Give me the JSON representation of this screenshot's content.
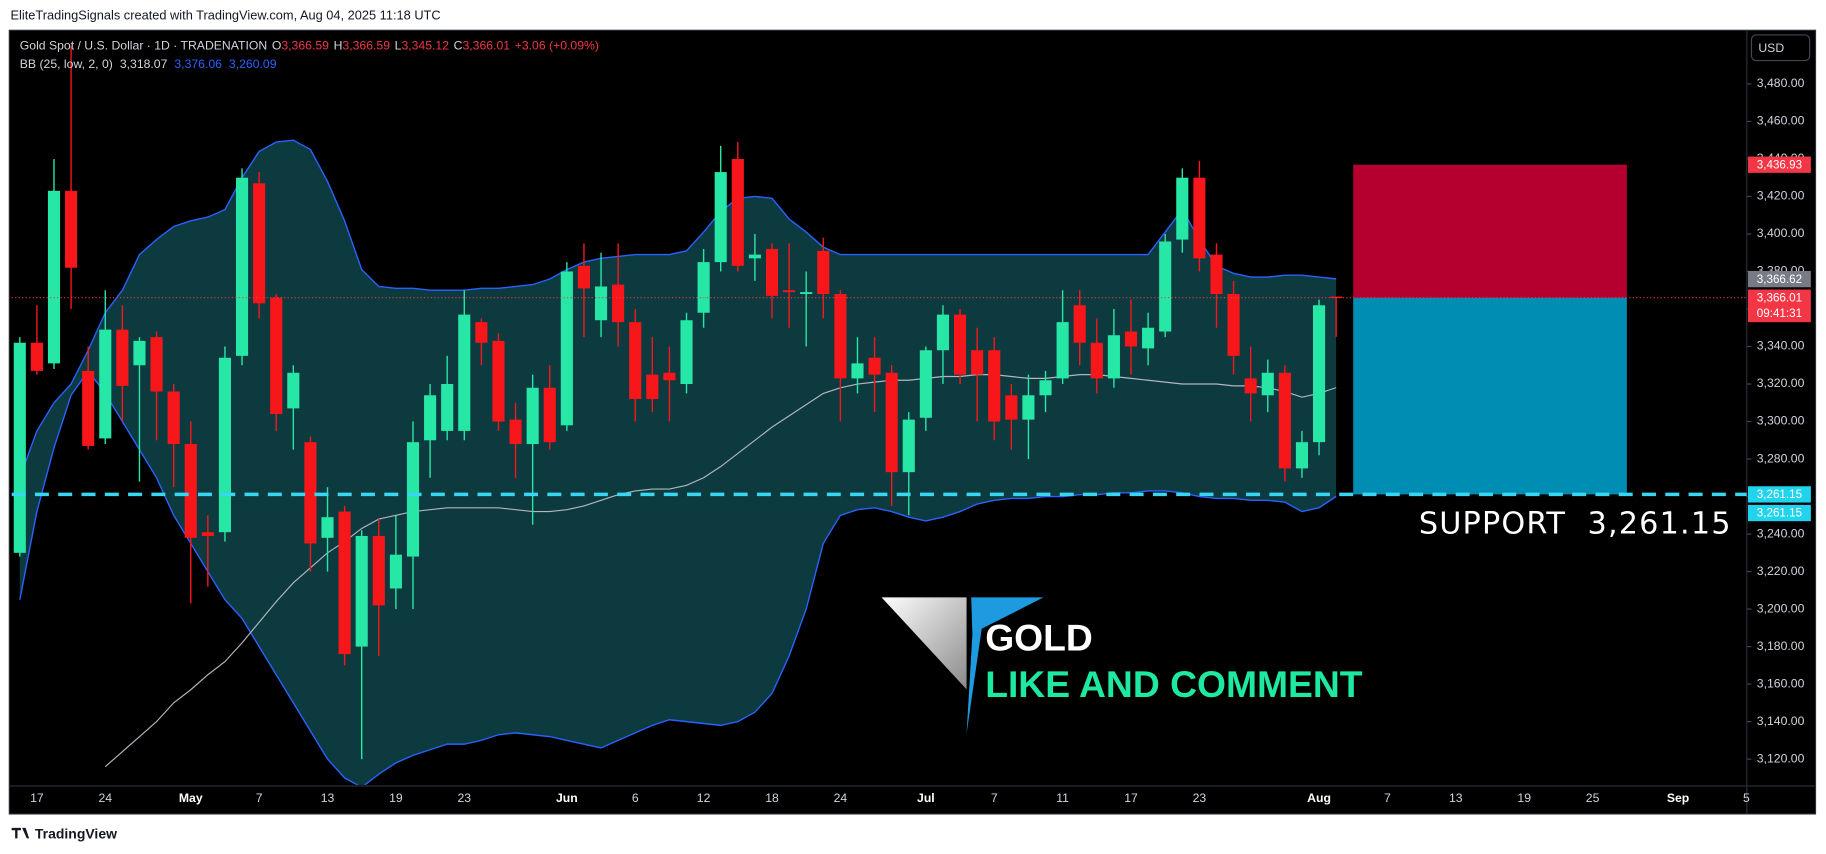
{
  "attribution": "EliteTradingSignals created with TradingView.com, Aug 04, 2025 11:18 UTC",
  "footer": "TradingView",
  "currency": "USD",
  "header": {
    "symbol": "Gold Spot / U.S. Dollar · 1D · TRADENATION",
    "ohlc": [
      {
        "label": "O",
        "value": "3,366.59"
      },
      {
        "label": "H",
        "value": "3,366.59"
      },
      {
        "label": "L",
        "value": "3,345.12"
      },
      {
        "label": "C",
        "value": "3,366.01"
      }
    ],
    "change": "+3.06 (+0.09%)",
    "indicator": "BB (25, low, 2, 0)",
    "indicator_values": [
      "3,318.07",
      "3,376.06",
      "3,260.09"
    ]
  },
  "overlay": {
    "title": "GOLD",
    "subtitle": "LIKE AND COMMENT"
  },
  "annotations": {
    "support": "SUPPORT  3,261.15"
  },
  "chart_data": {
    "type": "candlestick",
    "up_color": "#26e7a6",
    "down_color": "#f7171b",
    "band_color": "#2962ff",
    "basis_color": "#b2b5be",
    "band_fill": "#0c3a3f",
    "ylim": [
      3106.3,
      3508.6
    ],
    "yticks": [
      {
        "value": 3480,
        "label": "3,480.00"
      },
      {
        "value": 3460,
        "label": "3,460.00"
      },
      {
        "value": 3440,
        "label": "3,440.00"
      },
      {
        "value": 3420,
        "label": "3,420.00"
      },
      {
        "value": 3400,
        "label": "3,400.00"
      },
      {
        "value": 3380,
        "label": "3,380.00"
      },
      {
        "value": 3360,
        "label": "3,360.00"
      },
      {
        "value": 3340,
        "label": "3,340.00"
      },
      {
        "value": 3320,
        "label": "3,320.00"
      },
      {
        "value": 3300,
        "label": "3,300.00"
      },
      {
        "value": 3280,
        "label": "3,280.00"
      },
      {
        "value": 3260,
        "label": "3,260.00"
      },
      {
        "value": 3240,
        "label": "3,240.00"
      },
      {
        "value": 3220,
        "label": "3,220.00"
      },
      {
        "value": 3200,
        "label": "3,200.00"
      },
      {
        "value": 3180,
        "label": "3,180.00"
      },
      {
        "value": 3160,
        "label": "3,160.00"
      },
      {
        "value": 3140,
        "label": "3,140.00"
      },
      {
        "value": 3120,
        "label": "3,120.00"
      }
    ],
    "grid": false,
    "categories": [
      null,
      "17",
      null,
      null,
      null,
      "24",
      null,
      null,
      null,
      null,
      "May",
      null,
      null,
      null,
      "7",
      null,
      null,
      null,
      "13",
      null,
      null,
      null,
      "19",
      null,
      null,
      null,
      "23",
      null,
      null,
      null,
      null,
      null,
      "Jun",
      null,
      null,
      null,
      "6",
      null,
      null,
      null,
      "12",
      null,
      null,
      null,
      "18",
      null,
      null,
      null,
      "24",
      null,
      null,
      null,
      null,
      "Jul",
      null,
      null,
      null,
      "7",
      null,
      null,
      null,
      "11",
      null,
      null,
      null,
      "17",
      null,
      null,
      null,
      "23",
      null,
      null,
      null,
      null,
      null,
      null,
      "Aug",
      null,
      null,
      null,
      "7",
      null,
      null,
      null,
      "13",
      null,
      null,
      null,
      "19",
      null,
      null,
      null,
      "25",
      null,
      null,
      null,
      null,
      "Sep",
      null,
      null,
      null,
      "5"
    ],
    "open": [
      3230,
      3342,
      3331,
      3423,
      3327,
      3291,
      3349,
      3330,
      3345,
      3316,
      3288,
      3241,
      3241,
      3335,
      3427,
      3366,
      3307,
      3289,
      3238,
      3252,
      3180,
      3239,
      3211,
      3228,
      3290,
      3295,
      3295,
      3353,
      3343,
      3301,
      3288,
      3318,
      3298,
      3383,
      3354,
      3373,
      3353,
      3325,
      3326,
      3320,
      3358,
      3385,
      3440,
      3387,
      3392,
      3370,
      3368,
      3391,
      3368,
      3323,
      3334,
      3326,
      3273,
      3302,
      3338,
      3357,
      3338,
      3338,
      3314,
      3301,
      3314,
      3323,
      3362,
      3342,
      3323,
      3348,
      3339,
      3348,
      3397,
      3430,
      3389,
      3368,
      3323,
      3314,
      3326,
      3275,
      3289,
      3366.59,
      null,
      null,
      null,
      null,
      null,
      null,
      null,
      null,
      null,
      null,
      null,
      null,
      null,
      null,
      null,
      null,
      null,
      null,
      null,
      null,
      null,
      null,
      null,
      null
    ],
    "high": [
      3345,
      3362,
      3440,
      3500,
      3340,
      3370,
      3362,
      3345,
      3348,
      3320,
      3300,
      3250,
      3340,
      3435,
      3433,
      3368,
      3330,
      3292,
      3265,
      3255,
      3242,
      3248,
      3250,
      3300,
      3320,
      3335,
      3370,
      3355,
      3347,
      3310,
      3325,
      3330,
      3385,
      3395,
      3390,
      3395,
      3360,
      3345,
      3340,
      3358,
      3392,
      3447,
      3449,
      3400,
      3395,
      3395,
      3380,
      3398,
      3370,
      3345,
      3345,
      3330,
      3305,
      3340,
      3362,
      3360,
      3350,
      3345,
      3320,
      3325,
      3327,
      3370,
      3370,
      3355,
      3360,
      3365,
      3358,
      3400,
      3435,
      3439,
      3395,
      3375,
      3340,
      3333,
      3330,
      3295,
      3365,
      3366.59,
      null,
      null,
      null,
      null,
      null,
      null,
      null,
      null,
      null,
      null,
      null,
      null,
      null,
      null,
      null,
      null,
      null,
      null,
      null,
      null,
      null,
      null,
      null,
      null
    ],
    "low": [
      3228,
      3325,
      3328,
      3360,
      3285,
      3288,
      3300,
      3268,
      3290,
      3265,
      3203,
      3212,
      3236,
      3330,
      3355,
      3295,
      3285,
      3220,
      3220,
      3170,
      3120,
      3175,
      3200,
      3200,
      3270,
      3290,
      3290,
      3330,
      3295,
      3270,
      3245,
      3285,
      3295,
      3345,
      3345,
      3340,
      3300,
      3305,
      3300,
      3315,
      3350,
      3380,
      3380,
      3375,
      3355,
      3350,
      3340,
      3355,
      3300,
      3315,
      3305,
      3255,
      3250,
      3295,
      3320,
      3320,
      3300,
      3290,
      3285,
      3280,
      3305,
      3320,
      3330,
      3315,
      3318,
      3325,
      3330,
      3345,
      3390,
      3380,
      3350,
      3325,
      3300,
      3305,
      3268,
      3270,
      3282,
      3345.12,
      null,
      null,
      null,
      null,
      null,
      null,
      null,
      null,
      null,
      null,
      null,
      null,
      null,
      null,
      null,
      null,
      null,
      null,
      null,
      null,
      null,
      null,
      null,
      null
    ],
    "close": [
      3342,
      3327,
      3423,
      3382,
      3287,
      3349,
      3319,
      3343,
      3316,
      3288,
      3238,
      3239,
      3334,
      3430,
      3363,
      3304,
      3326,
      3235,
      3249,
      3176,
      3239,
      3202,
      3229,
      3289,
      3314,
      3320,
      3357,
      3342,
      3300,
      3288,
      3318,
      3289,
      3380,
      3371,
      3372,
      3353,
      3312,
      3312,
      3322,
      3354,
      3385,
      3433,
      3383,
      3389,
      3367,
      3369,
      3369,
      3368,
      3323,
      3331,
      3325,
      3273,
      3301,
      3338,
      3357,
      3325,
      3325,
      3300,
      3301,
      3314,
      3322,
      3353,
      3342,
      3323,
      3346,
      3340,
      3350,
      3396,
      3430,
      3387,
      3368,
      3335,
      3315,
      3326,
      3275,
      3289,
      3362,
      3366.01,
      null,
      null,
      null,
      null,
      null,
      null,
      null,
      null,
      null,
      null,
      null,
      null,
      null,
      null,
      null,
      null,
      null,
      null,
      null,
      null,
      null,
      null,
      null,
      null
    ],
    "bb_upper": [
      3270,
      3295,
      3310,
      3320,
      3338,
      3358,
      3370,
      3389,
      3397,
      3404,
      3407,
      3409,
      3413,
      3430,
      3444,
      3449,
      3450,
      3445,
      3428,
      3407,
      3381,
      3372,
      3371,
      3371,
      3370,
      3370,
      3370,
      3371,
      3371,
      3372,
      3373,
      3376,
      3381,
      3385,
      3387,
      3388,
      3389,
      3389,
      3389,
      3391,
      3401,
      3412,
      3419,
      3420,
      3419,
      3408,
      3401,
      3393,
      3389,
      3389,
      3389,
      3389,
      3389,
      3389,
      3389,
      3389,
      3389,
      3389,
      3389,
      3389,
      3389,
      3389,
      3389,
      3389,
      3389,
      3389,
      3389,
      3401,
      3413,
      3397,
      3383,
      3379,
      3377,
      3377,
      3378,
      3378,
      3377,
      3376.06,
      null,
      null,
      null,
      null,
      null,
      null,
      null,
      null,
      null,
      null,
      null,
      null,
      null,
      null,
      null,
      null,
      null,
      null,
      null,
      null,
      null,
      null,
      null,
      null
    ],
    "bb_basis": [
      null,
      null,
      null,
      null,
      null,
      3116,
      3124,
      3132,
      3140,
      3150,
      3157,
      3165,
      3172,
      3182,
      3193,
      3204,
      3214,
      3222,
      3230,
      3236,
      3243,
      3248,
      3250,
      3252,
      3253,
      3254,
      3254,
      3254,
      3254,
      3253,
      3252,
      3252,
      3253,
      3255,
      3258,
      3261,
      3263,
      3264,
      3264,
      3266,
      3270,
      3276,
      3283,
      3290,
      3297,
      3303,
      3309,
      3315,
      3318,
      3320,
      3321,
      3322,
      3322,
      3323,
      3324,
      3324,
      3325,
      3325,
      3324,
      3323,
      3323,
      3324,
      3325,
      3325,
      3324,
      3323,
      3322,
      3321,
      3320,
      3320,
      3320,
      3319,
      3319,
      3318,
      3316,
      3313,
      3315,
      3318.07,
      null,
      null,
      null,
      null,
      null,
      null,
      null,
      null,
      null,
      null,
      null,
      null,
      null,
      null,
      null,
      null,
      null,
      null,
      null,
      null,
      null,
      null,
      null,
      null
    ],
    "bb_lower": [
      3205,
      3252,
      3286,
      3314,
      3327,
      3315,
      3300,
      3285,
      3270,
      3250,
      3235,
      3220,
      3205,
      3195,
      3180,
      3165,
      3150,
      3135,
      3120,
      3110,
      3105,
      3112,
      3118,
      3122,
      3125,
      3128,
      3128,
      3130,
      3133,
      3134,
      3133,
      3132,
      3130,
      3128,
      3126,
      3130,
      3134,
      3138,
      3141,
      3140,
      3139,
      3138,
      3140,
      3145,
      3155,
      3175,
      3200,
      3235,
      3250,
      3253,
      3254,
      3252,
      3249,
      3247,
      3249,
      3252,
      3256,
      3258,
      3259,
      3259,
      3260,
      3260,
      3261,
      3261,
      3262,
      3262,
      3263,
      3263,
      3262,
      3260,
      3259,
      3259,
      3258,
      3258,
      3257,
      3252,
      3254,
      3260.09,
      null,
      null,
      null,
      null,
      null,
      null,
      null,
      null,
      null,
      null,
      null,
      null,
      null,
      null,
      null,
      null,
      null,
      null,
      null,
      null,
      null,
      null,
      null,
      null
    ],
    "price_tags": [
      {
        "value": 3436.93,
        "label": "3,436.93",
        "color": "#f23645"
      },
      {
        "value": 3366.62,
        "label": "3,366.62",
        "color": "#787b86"
      },
      {
        "value": 3366.01,
        "label": "3,366.01",
        "color": "#f23645",
        "countdown": "09:41:31"
      },
      {
        "value": 3261.15,
        "label": "3,261.15",
        "color": "#22d3ee"
      },
      {
        "value": 3261.15,
        "label": "3,261.15",
        "color": "#22d3ee"
      }
    ],
    "position": {
      "stop_color": "#b5002f",
      "target_color": "#008db3"
    },
    "support_color": "#38d6f0"
  }
}
